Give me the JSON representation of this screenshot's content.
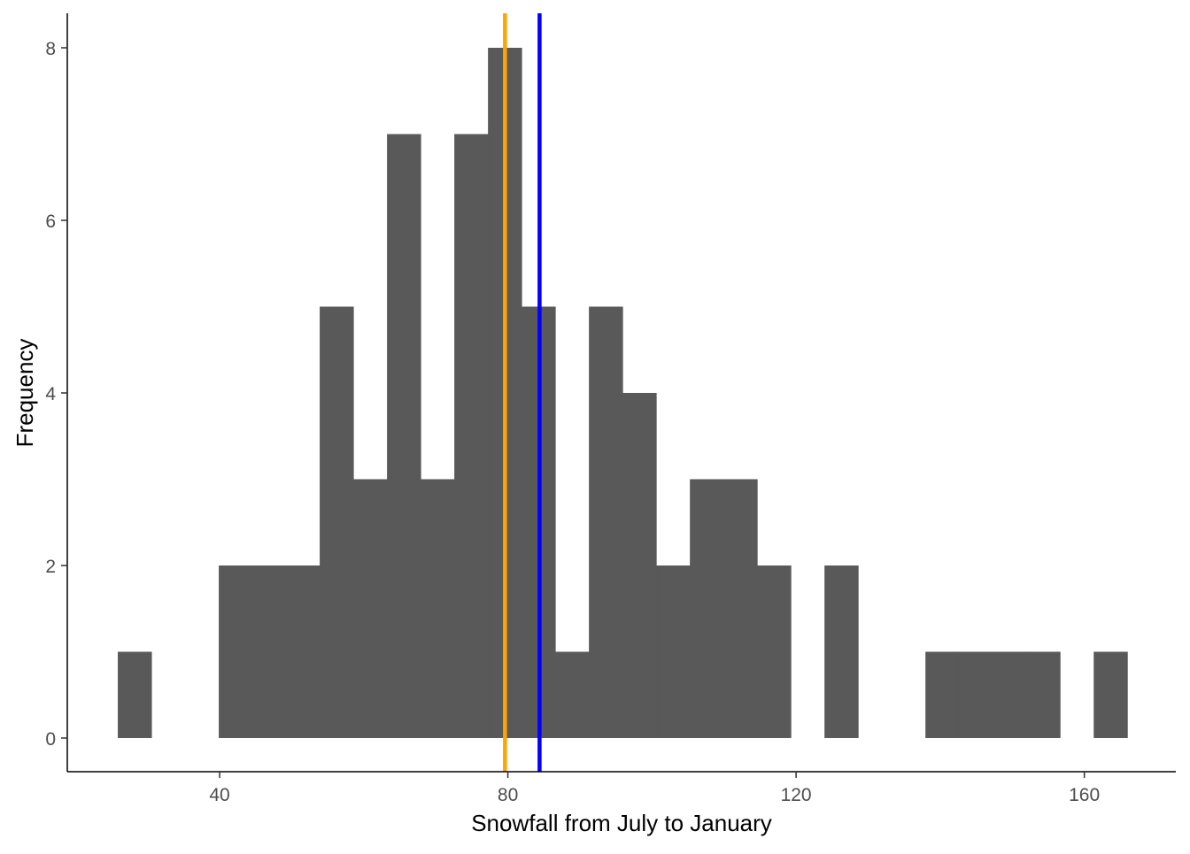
{
  "chart_data": {
    "type": "bar",
    "subtype": "histogram",
    "title": "",
    "xlabel": "Snowfall from July to January",
    "ylabel": "Frequency",
    "bin_start": 25.87,
    "binwidth": 4.67,
    "counts": [
      1,
      0,
      0,
      2,
      2,
      2,
      5,
      3,
      7,
      3,
      7,
      8,
      5,
      1,
      5,
      4,
      2,
      3,
      3,
      2,
      0,
      2,
      0,
      0,
      1,
      1,
      1,
      1,
      0,
      1
    ],
    "bar_color": "#595959",
    "xlim": [
      18.86,
      172.7
    ],
    "ylim": [
      -0.39,
      8.4
    ],
    "xticks": [
      40,
      80,
      120,
      160
    ],
    "yticks": [
      0,
      2,
      4,
      6,
      8
    ],
    "grid": false,
    "vlines": [
      {
        "x": 79.6,
        "color": "#FFA500"
      },
      {
        "x": 84.4,
        "color": "#0000FF"
      }
    ]
  }
}
